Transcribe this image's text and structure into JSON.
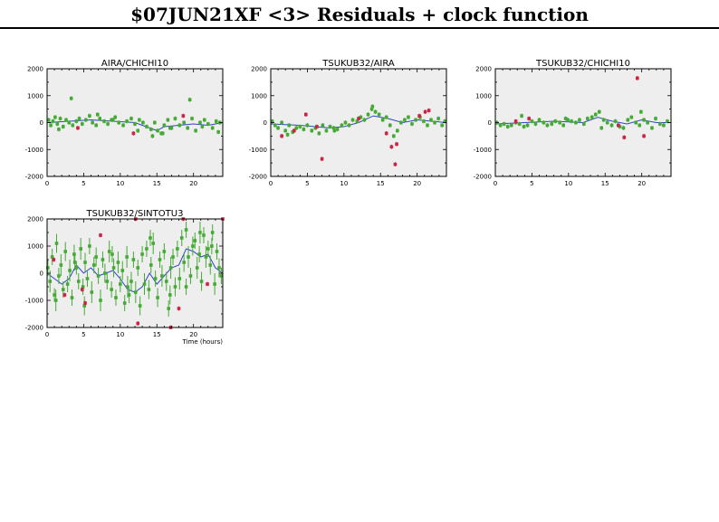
{
  "page_title": "$07JUN21XF <3> Residuals + clock function",
  "colors": {
    "panel_bg": "#eeeeee",
    "good": "#44aa33",
    "flagged": "#cc2244",
    "clock": "#3344cc",
    "axis": "#000000"
  },
  "x_axis_label": "Time (hours)",
  "chart_data": [
    {
      "type": "scatter",
      "title": "AIRA/CHICHI10",
      "xlim": [
        0,
        24
      ],
      "ylim": [
        -2000,
        2000
      ],
      "xticks": [
        0,
        5,
        10,
        15,
        20
      ],
      "yticks": [
        -2000,
        -1000,
        0,
        1000,
        2000
      ],
      "series": [
        {
          "x": [
            0.2,
            0.5,
            0.8,
            1.1,
            1.4,
            1.8,
            2.2,
            2.6,
            3.0,
            3.5,
            4.0,
            4.4,
            4.8,
            5.3,
            5.8,
            6.2,
            6.7,
            7.2,
            7.8,
            8.3,
            8.8,
            9.3,
            9.8,
            10.4,
            10.9,
            11.5,
            12.0,
            12.6,
            13.1,
            13.6,
            14.2,
            14.7,
            15.1,
            15.6,
            16.0,
            16.5,
            17.0,
            17.5,
            18.1,
            18.7,
            19.2,
            19.8,
            20.3,
            20.9,
            21.5,
            22.0,
            22.6,
            23.1,
            23.6,
            3.3,
            6.9,
            9.0,
            12.4,
            15.8,
            19.5,
            21.2,
            23.4,
            1.6,
            16.8,
            14.4
          ],
          "y": [
            100,
            -100,
            50,
            200,
            -50,
            150,
            -150,
            100,
            0,
            -100,
            50,
            150,
            -50,
            100,
            250,
            0,
            -100,
            150,
            50,
            -50,
            100,
            200,
            0,
            -100,
            50,
            150,
            -50,
            100,
            0,
            -150,
            -250,
            0,
            -300,
            -400,
            -100,
            100,
            -200,
            150,
            -100,
            0,
            -200,
            150,
            -300,
            0,
            100,
            -50,
            -200,
            50,
            0,
            900,
            300,
            100,
            -300,
            -400,
            850,
            -150,
            -350,
            -250,
            -200,
            -500
          ]
        },
        {
          "x": [
            4.2,
            11.8,
            18.6
          ],
          "y": [
            -200,
            -400,
            250
          ]
        }
      ],
      "clock": {
        "x": [
          0,
          3,
          6,
          9,
          12,
          13,
          14,
          15,
          16,
          18,
          20,
          22,
          24
        ],
        "y": [
          0,
          50,
          100,
          50,
          0,
          -100,
          -200,
          -300,
          -150,
          -100,
          -50,
          -100,
          0
        ]
      }
    },
    {
      "type": "scatter",
      "title": "TSUKUB32/AIRA",
      "xlim": [
        0,
        24
      ],
      "ylim": [
        -2000,
        2000
      ],
      "xticks": [
        0,
        5,
        10,
        15,
        20
      ],
      "yticks": [
        -2000,
        -1000,
        0,
        1000,
        2000
      ],
      "series": [
        {
          "x": [
            0.2,
            0.6,
            1.0,
            1.5,
            2.0,
            2.5,
            3.0,
            3.5,
            4.0,
            4.5,
            5.0,
            5.6,
            6.1,
            6.6,
            7.1,
            7.6,
            8.1,
            8.6,
            9.1,
            9.7,
            10.2,
            10.7,
            11.2,
            11.8,
            12.3,
            12.8,
            13.3,
            13.8,
            14.3,
            14.8,
            15.3,
            15.8,
            16.3,
            16.8,
            17.3,
            17.8,
            18.3,
            18.8,
            19.3,
            19.8,
            20.4,
            20.9,
            21.4,
            21.9,
            22.4,
            22.9,
            23.4,
            23.8,
            2.3,
            8.7,
            13.9
          ],
          "y": [
            50,
            -100,
            -200,
            0,
            -300,
            -100,
            -350,
            -200,
            -150,
            -250,
            -100,
            -300,
            -200,
            -400,
            -100,
            -300,
            -150,
            -200,
            -250,
            -100,
            0,
            -100,
            100,
            50,
            200,
            100,
            300,
            500,
            400,
            300,
            100,
            200,
            -100,
            -500,
            -300,
            0,
            100,
            200,
            -50,
            100,
            200,
            50,
            -100,
            100,
            0,
            150,
            -100,
            50,
            -450,
            -300,
            600
          ]
        },
        {
          "x": [
            1.5,
            3.2,
            4.8,
            6.3,
            7.0,
            12.0,
            15.8,
            16.5,
            17.0,
            17.2,
            20.3,
            21.1,
            21.6
          ],
          "y": [
            -500,
            -300,
            300,
            -150,
            -1350,
            150,
            -400,
            -900,
            -1550,
            -800,
            250,
            400,
            450
          ]
        }
      ],
      "clock": {
        "x": [
          0,
          4,
          8,
          10,
          12,
          14,
          16,
          18,
          20,
          22,
          24
        ],
        "y": [
          -50,
          -100,
          -200,
          -150,
          0,
          250,
          150,
          0,
          100,
          50,
          0
        ]
      }
    },
    {
      "type": "scatter",
      "title": "TSUKUB32/CHICHI10",
      "xlim": [
        0,
        24
      ],
      "ylim": [
        -2000,
        2000
      ],
      "xticks": [
        0,
        5,
        10,
        15,
        20
      ],
      "yticks": [
        -2000,
        -1000,
        0,
        1000,
        2000
      ],
      "series": [
        {
          "x": [
            0.2,
            0.7,
            1.2,
            1.7,
            2.2,
            2.8,
            3.3,
            3.9,
            4.4,
            5.0,
            5.5,
            6.0,
            6.6,
            7.1,
            7.7,
            8.2,
            8.8,
            9.3,
            9.9,
            10.4,
            11.0,
            11.5,
            12.1,
            12.6,
            13.2,
            13.7,
            14.2,
            14.8,
            15.3,
            15.9,
            16.4,
            17.0,
            17.5,
            18.1,
            18.6,
            19.2,
            19.7,
            20.3,
            20.8,
            21.4,
            21.9,
            22.5,
            23.0,
            23.5,
            3.6,
            9.6,
            14.5,
            19.9
          ],
          "y": [
            0,
            -100,
            -50,
            -150,
            -100,
            0,
            -50,
            -150,
            -100,
            50,
            -50,
            100,
            0,
            -100,
            -50,
            50,
            0,
            -100,
            100,
            50,
            0,
            100,
            -50,
            150,
            200,
            300,
            400,
            100,
            0,
            -100,
            50,
            -150,
            -200,
            100,
            200,
            0,
            -100,
            100,
            0,
            -200,
            150,
            -50,
            -100,
            50,
            250,
            150,
            -200,
            400
          ]
        },
        {
          "x": [
            2.8,
            4.6,
            16.8,
            17.6,
            19.4,
            20.3
          ],
          "y": [
            50,
            150,
            -100,
            -550,
            1650,
            -500
          ]
        }
      ],
      "clock": {
        "x": [
          0,
          4,
          8,
          12,
          14,
          16,
          18,
          20,
          22,
          24
        ],
        "y": [
          -50,
          0,
          50,
          0,
          200,
          50,
          -50,
          100,
          0,
          0
        ]
      }
    },
    {
      "type": "scatter",
      "title": "TSUKUB32/SINTOTU3",
      "xlim": [
        0,
        24
      ],
      "ylim": [
        -2000,
        2000
      ],
      "xticks": [
        0,
        5,
        10,
        15,
        20
      ],
      "yticks": [
        -2000,
        -1000,
        0,
        1000,
        2000
      ],
      "series": [
        {
          "x": [
            0.1,
            0.4,
            0.7,
            1.0,
            1.3,
            1.6,
            1.9,
            2.2,
            2.5,
            2.8,
            3.1,
            3.4,
            3.7,
            4.0,
            4.3,
            4.6,
            4.9,
            5.2,
            5.5,
            5.8,
            6.1,
            6.4,
            6.7,
            7.0,
            7.3,
            7.6,
            7.9,
            8.2,
            8.5,
            8.8,
            9.1,
            9.4,
            9.7,
            10.0,
            10.3,
            10.6,
            10.9,
            11.2,
            11.5,
            11.8,
            12.1,
            12.4,
            12.7,
            13.0,
            13.3,
            13.6,
            13.9,
            14.2,
            14.5,
            14.8,
            15.1,
            15.4,
            15.7,
            16.0,
            16.3,
            16.6,
            16.9,
            17.2,
            17.5,
            17.8,
            18.1,
            18.4,
            18.7,
            19.0,
            19.3,
            19.6,
            19.9,
            20.2,
            20.5,
            20.8,
            21.1,
            21.4,
            21.7,
            22.0,
            22.3,
            22.6,
            22.9,
            23.2,
            23.5,
            23.8,
            1.2,
            3.8,
            5.1,
            8.9,
            11.0,
            14.1,
            16.8,
            19.0,
            20.9,
            22.5
          ],
          "y": [
            200,
            -300,
            600,
            -800,
            1100,
            -100,
            300,
            -600,
            800,
            -400,
            100,
            -900,
            700,
            200,
            -300,
            900,
            -500,
            400,
            -200,
            1000,
            -700,
            300,
            600,
            -100,
            -1000,
            500,
            0,
            -300,
            800,
            -600,
            200,
            -900,
            400,
            -400,
            100,
            -1100,
            600,
            -800,
            -300,
            500,
            -700,
            200,
            -1200,
            700,
            -400,
            900,
            -600,
            300,
            1100,
            -200,
            -900,
            500,
            -100,
            800,
            -300,
            -1300,
            200,
            600,
            -500,
            900,
            -200,
            1300,
            400,
            1600,
            600,
            -100,
            1000,
            1200,
            200,
            700,
            -300,
            1400,
            600,
            900,
            300,
            1500,
            -400,
            800,
            200,
            -100,
            -1000,
            400,
            -1200,
            700,
            -500,
            1300,
            -800,
            -500,
            1500,
            1000
          ],
          "ey": [
            300,
            400,
            300,
            250,
            350,
            300,
            400,
            300,
            350,
            300,
            400,
            300,
            350,
            250,
            300,
            400,
            300,
            350,
            300,
            300,
            400,
            300,
            350,
            300,
            400,
            300,
            350,
            300,
            400,
            300,
            350,
            300,
            400,
            300,
            350,
            300,
            400,
            300,
            350,
            300,
            400,
            300,
            350,
            300,
            400,
            300,
            350,
            300,
            400,
            300,
            350,
            300,
            400,
            300,
            350,
            300,
            400,
            300,
            350,
            300,
            400,
            300,
            350,
            300,
            400,
            300,
            350,
            300,
            400,
            300,
            350,
            300,
            400,
            300,
            350,
            300,
            400,
            300,
            350,
            300,
            400,
            300,
            350,
            300,
            400,
            300,
            350,
            300,
            400,
            300
          ]
        },
        {
          "x": [
            2.4,
            4.8,
            5.2,
            7.3,
            12.1,
            12.4,
            16.9,
            18.0,
            18.6,
            21.9,
            24.0,
            0.9
          ],
          "y": [
            -800,
            -600,
            -1100,
            1400,
            2150,
            -1850,
            -2100,
            -1300,
            2150,
            -400,
            2100,
            500
          ]
        }
      ],
      "clock": {
        "x": [
          0,
          1,
          2,
          3,
          4,
          5,
          6,
          7,
          8,
          9,
          10,
          11,
          12,
          13,
          14,
          15,
          16,
          17,
          18,
          19,
          20,
          21,
          22,
          23,
          24
        ],
        "y": [
          0,
          -200,
          -400,
          -200,
          300,
          0,
          200,
          -100,
          0,
          100,
          -200,
          -600,
          -700,
          -500,
          0,
          -400,
          -100,
          200,
          300,
          900,
          800,
          600,
          700,
          200,
          0
        ]
      }
    }
  ]
}
